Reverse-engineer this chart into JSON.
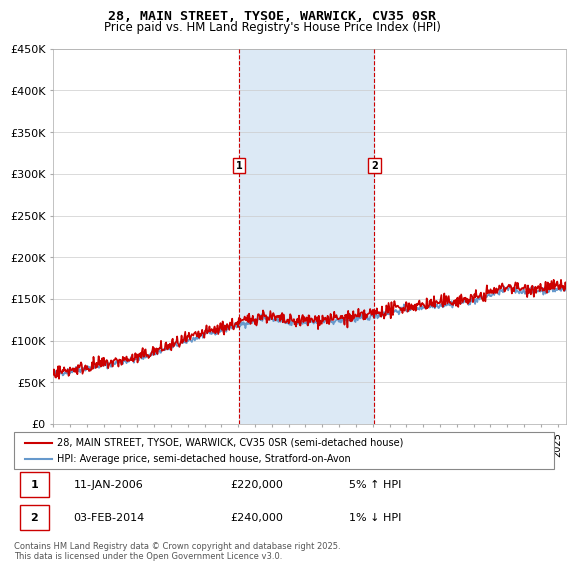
{
  "title": "28, MAIN STREET, TYSOE, WARWICK, CV35 0SR",
  "subtitle": "Price paid vs. HM Land Registry's House Price Index (HPI)",
  "ylabel_ticks": [
    "£0",
    "£50K",
    "£100K",
    "£150K",
    "£200K",
    "£250K",
    "£300K",
    "£350K",
    "£400K",
    "£450K"
  ],
  "ylim": [
    0,
    450000
  ],
  "xlim_start": 1995.0,
  "xlim_end": 2025.5,
  "marker1": {
    "x": 2006.04,
    "label": "1",
    "date": "11-JAN-2006",
    "price": "£220,000",
    "hpi": "5% ↑ HPI"
  },
  "marker2": {
    "x": 2014.09,
    "label": "2",
    "date": "03-FEB-2014",
    "price": "£240,000",
    "hpi": "1% ↓ HPI"
  },
  "legend_line1": "28, MAIN STREET, TYSOE, WARWICK, CV35 0SR (semi-detached house)",
  "legend_line2": "HPI: Average price, semi-detached house, Stratford-on-Avon",
  "footer": "Contains HM Land Registry data © Crown copyright and database right 2025.\nThis data is licensed under the Open Government Licence v3.0.",
  "color_price": "#cc0000",
  "color_hpi": "#6699cc",
  "color_shading": "#dce9f5",
  "background_color": "#ffffff",
  "grid_color": "#cccccc"
}
